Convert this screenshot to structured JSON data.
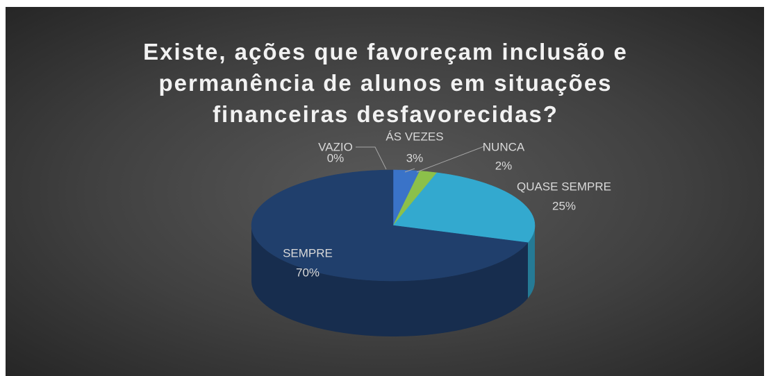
{
  "chart_data": {
    "type": "pie3d",
    "title": "Existe, ações que favoreçam inclusão e permanência de alunos em situações financeiras desfavorecidas?",
    "categories": [
      "VAZIO",
      "ÁS VEZES",
      "NUNCA",
      "QUASE SEMPRE",
      "SEMPRE"
    ],
    "values": [
      0,
      3,
      2,
      25,
      70
    ],
    "value_labels": [
      "0%",
      "3%",
      "2%",
      "25%",
      "70%"
    ],
    "colors": [
      "#2b5aa8",
      "#3a73c8",
      "#8cc04a",
      "#33a9cf",
      "#203f6c"
    ]
  }
}
